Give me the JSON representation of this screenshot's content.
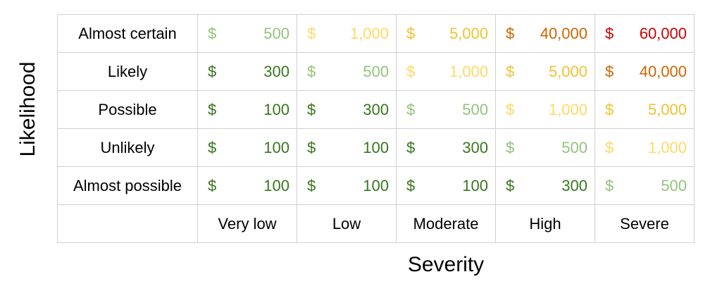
{
  "chart_data": {
    "type": "table",
    "xlabel": "Severity",
    "ylabel": "Likelihood",
    "columns": [
      "Very low",
      "Low",
      "Moderate",
      "High",
      "Severe"
    ],
    "rows": [
      "Almost certain",
      "Likely",
      "Possible",
      "Unlikely",
      "Almost possible"
    ],
    "currency": "$",
    "values": [
      [
        "500",
        "1,000",
        "5,000",
        "40,000",
        "60,000"
      ],
      [
        "300",
        "500",
        "1,000",
        "5,000",
        "40,000"
      ],
      [
        "100",
        "300",
        "500",
        "1,000",
        "5,000"
      ],
      [
        "100",
        "100",
        "300",
        "500",
        "1,000"
      ],
      [
        "100",
        "100",
        "100",
        "300",
        "500"
      ]
    ],
    "value_colors": {
      "100": "#38761d",
      "300": "#38761d",
      "500": "#93c47d",
      "1,000": "#ffd966",
      "5,000": "#f1c232",
      "40,000": "#cc6600",
      "60,000": "#cc0000"
    }
  }
}
